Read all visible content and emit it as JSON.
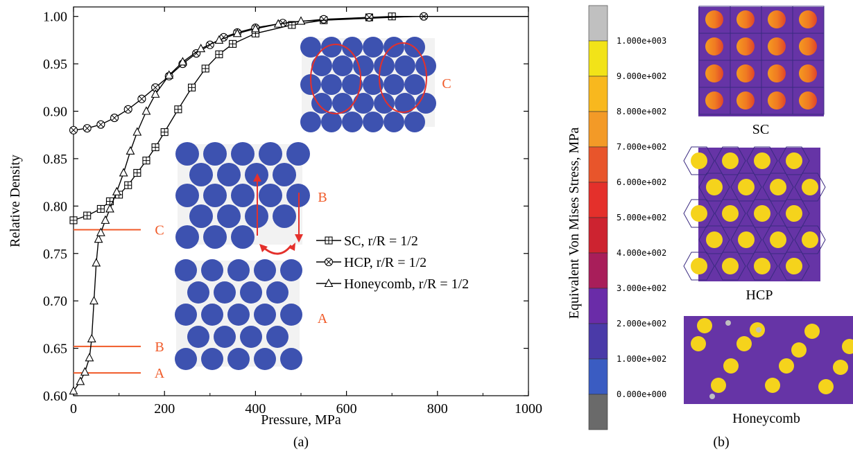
{
  "chart_data": [
    {
      "type": "line",
      "panel_label": "(a)",
      "xlabel": "Pressure, MPa",
      "ylabel": "Relative Density",
      "xlim": [
        0,
        1000
      ],
      "ylim": [
        0.6,
        1.01
      ],
      "x_ticks": [
        "0",
        "200",
        "400",
        "600",
        "800",
        "1000"
      ],
      "y_ticks": [
        "0.60",
        "0.65",
        "0.70",
        "0.75",
        "0.80",
        "0.85",
        "0.90",
        "0.95",
        "1.00"
      ],
      "grid": false,
      "legend_position": "center-right",
      "legend": [
        {
          "name": "SC",
          "suffix": ", r/R = 1/2",
          "marker": "square-plus"
        },
        {
          "name": "HCP",
          "suffix": ", r/R = 1/2",
          "marker": "circle-x"
        },
        {
          "name": "Honeycomb",
          "suffix": ", r/R = 1/2",
          "marker": "triangle"
        }
      ],
      "series": [
        {
          "name": "SC",
          "marker": "square-plus",
          "x": [
            0,
            30,
            60,
            80,
            100,
            120,
            140,
            160,
            180,
            200,
            230,
            260,
            290,
            320,
            350,
            400,
            480,
            550,
            650,
            700
          ],
          "y": [
            0.785,
            0.79,
            0.797,
            0.805,
            0.812,
            0.822,
            0.835,
            0.848,
            0.862,
            0.878,
            0.902,
            0.925,
            0.945,
            0.96,
            0.971,
            0.982,
            0.991,
            0.996,
            0.999,
            1.0
          ]
        },
        {
          "name": "HCP",
          "marker": "circle-x",
          "x": [
            0,
            30,
            60,
            90,
            120,
            150,
            180,
            210,
            240,
            270,
            300,
            330,
            360,
            400,
            460,
            550,
            650,
            770
          ],
          "y": [
            0.88,
            0.882,
            0.886,
            0.893,
            0.902,
            0.913,
            0.925,
            0.937,
            0.95,
            0.961,
            0.97,
            0.978,
            0.983,
            0.988,
            0.993,
            0.997,
            0.999,
            1.0
          ]
        },
        {
          "name": "Honeycomb",
          "marker": "triangle",
          "x": [
            0,
            15,
            25,
            35,
            40,
            45,
            50,
            55,
            60,
            70,
            80,
            95,
            110,
            125,
            140,
            160,
            180,
            210,
            240,
            280,
            320,
            360,
            400,
            450,
            500
          ],
          "y": [
            0.605,
            0.615,
            0.625,
            0.64,
            0.66,
            0.7,
            0.74,
            0.765,
            0.772,
            0.785,
            0.797,
            0.815,
            0.835,
            0.858,
            0.878,
            0.9,
            0.918,
            0.938,
            0.952,
            0.966,
            0.975,
            0.982,
            0.987,
            0.992,
            0.995
          ]
        }
      ],
      "reference_lines": [
        {
          "label": "C",
          "y": 0.775
        },
        {
          "label": "B",
          "y": 0.652
        },
        {
          "label": "A",
          "y": 0.624
        }
      ],
      "inset_labels": [
        "C",
        "B",
        "A"
      ]
    },
    {
      "type": "heatmap",
      "panel_label": "(b)",
      "colorbar_label": "Equivalent Von Mises Stress, MPa",
      "colorbar_ticks": [
        "1.000e+003",
        "9.000e+002",
        "8.000e+002",
        "7.000e+002",
        "6.000e+002",
        "5.000e+002",
        "4.000e+002",
        "3.000e+002",
        "2.000e+002",
        "1.000e+002",
        "0.000e+000"
      ],
      "colorbar_colors": [
        "#c0c0c0",
        "#f2e318",
        "#f8b81e",
        "#f39a27",
        "#e8552b",
        "#e4302b",
        "#cd2330",
        "#a81e5a",
        "#6a2ca8",
        "#4a3aa8",
        "#3a5cc2",
        "#6a6a6a"
      ],
      "panels": [
        "SC",
        "HCP",
        "Honeycomb"
      ]
    }
  ]
}
